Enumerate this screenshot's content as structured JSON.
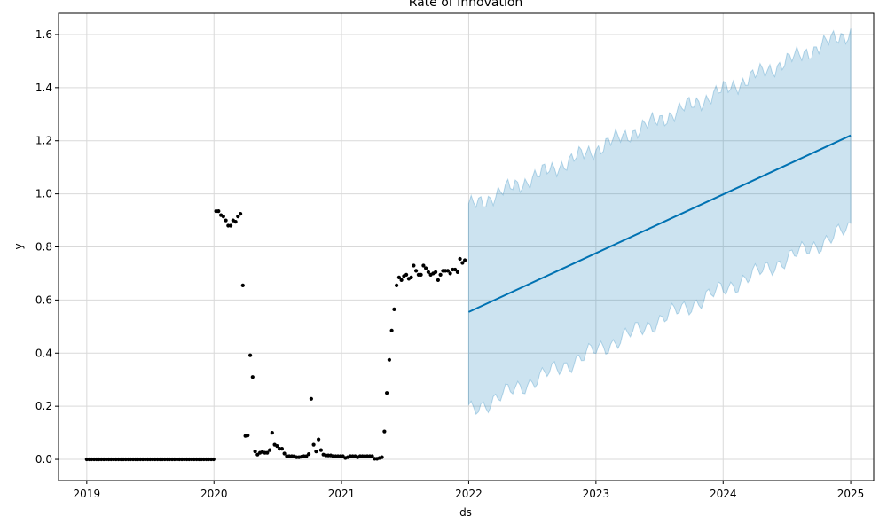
{
  "chart_data": {
    "type": "scatter",
    "title": "Rate of Innovation",
    "xlabel": "ds",
    "ylabel": "y",
    "x_ticks": [
      "2019",
      "2020",
      "2021",
      "2022",
      "2023",
      "2024",
      "2025"
    ],
    "y_ticks": [
      "0.0",
      "0.2",
      "0.4",
      "0.6",
      "0.8",
      "1.0",
      "1.2",
      "1.4",
      "1.6"
    ],
    "xlim": [
      "2018-10-12",
      "2025-03-08"
    ],
    "ylim": [
      -0.08,
      1.68
    ],
    "grid": true,
    "colors": {
      "observed": "#000000",
      "forecast": "#0072B2",
      "interval": "#0072B2",
      "grid": "#d9d9d9"
    },
    "series": [
      {
        "kind": "observed-points",
        "start": "2019-01-01",
        "step_days": 7,
        "values": [
          0,
          0,
          0,
          0,
          0,
          0,
          0,
          0,
          0,
          0,
          0,
          0,
          0,
          0,
          0,
          0,
          0,
          0,
          0,
          0,
          0,
          0,
          0,
          0,
          0,
          0,
          0,
          0,
          0,
          0,
          0,
          0,
          0,
          0,
          0,
          0,
          0,
          0,
          0,
          0,
          0,
          0,
          0,
          0,
          0,
          0,
          0,
          0,
          0,
          0,
          0,
          0,
          0,
          0.935,
          0.935,
          0.92,
          0.915,
          0.9,
          0.88,
          0.88,
          0.9,
          0.895,
          0.915,
          0.925,
          0.655,
          0.088,
          0.09,
          0.392,
          0.31,
          0.03,
          0.018,
          0.025,
          0.028,
          0.025,
          0.025,
          0.035,
          0.1,
          0.055,
          0.05,
          0.04,
          0.04,
          0.022,
          0.012,
          0.012,
          0.012,
          0.012,
          0.008,
          0.008,
          0.01,
          0.012,
          0.012,
          0.02,
          0.228,
          0.055,
          0.03,
          0.075,
          0.035,
          0.018,
          0.015,
          0.015,
          0.015,
          0.012,
          0.012,
          0.012,
          0.012,
          0.012,
          0.005,
          0.008,
          0.012,
          0.012,
          0.012,
          0.008,
          0.012,
          0.012,
          0.012,
          0.012,
          0.012,
          0.012,
          0.002,
          0.002,
          0.005,
          0.008,
          0.105,
          0.25,
          0.375,
          0.485,
          0.565,
          0.655,
          0.685,
          0.675,
          0.69,
          0.695,
          0.68,
          0.685,
          0.73,
          0.71,
          0.695,
          0.695,
          0.73,
          0.72,
          0.705,
          0.695,
          0.7,
          0.705,
          0.675,
          0.695,
          0.71,
          0.71,
          0.71,
          0.7,
          0.715,
          0.715,
          0.705,
          0.755,
          0.74,
          0.75
        ]
      },
      {
        "kind": "forecast-line",
        "points": [
          [
            "2022-01-01",
            0.555
          ],
          [
            "2025-01-01",
            1.22
          ]
        ]
      },
      {
        "kind": "uncertainty-band",
        "start": "2022-01-01",
        "end": "2025-01-01",
        "lower_start": 0.18,
        "lower_end": 0.87,
        "upper_start": 0.95,
        "upper_end": 1.61
      }
    ]
  }
}
